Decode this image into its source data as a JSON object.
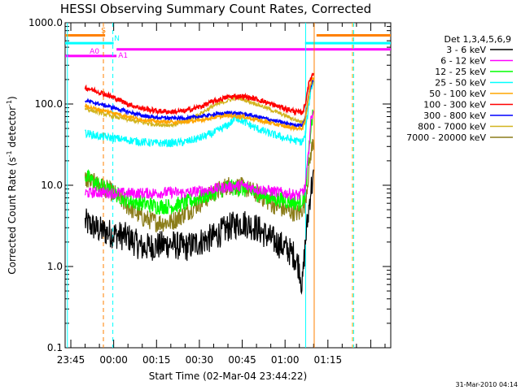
{
  "chart_data": {
    "type": "line",
    "title": "HESSI Observing Summary Count Rates, Corrected",
    "xlabel": "Start Time (02-Mar-04 23:44:22)",
    "ylabel_parts": {
      "before": "Corrected Count Rate (s",
      "sup1": "-1",
      "mid": " detector",
      "sup2": "-1",
      "after": ")"
    },
    "yscale": "log",
    "ylim": [
      0.1,
      1000.0
    ],
    "xlim_minutes": [
      -17,
      97
    ],
    "y_ticks": [
      {
        "value": 1000.0,
        "label": "1000.0"
      },
      {
        "value": 100.0,
        "label": "100.0"
      },
      {
        "value": 10.0,
        "label": "10.0"
      },
      {
        "value": 1.0,
        "label": "1.0"
      },
      {
        "value": 0.1,
        "label": "0.1"
      }
    ],
    "x_ticks": [
      {
        "value": -15,
        "label": "23:45"
      },
      {
        "value": 0,
        "label": "00:00"
      },
      {
        "value": 15,
        "label": "00:15"
      },
      {
        "value": 30,
        "label": "00:30"
      },
      {
        "value": 45,
        "label": "00:45"
      },
      {
        "value": 60,
        "label": "01:00"
      },
      {
        "value": 75,
        "label": "01:15"
      }
    ],
    "legend_header": "Det 1,3,4,5,6,9",
    "legend_position": "right",
    "series": [
      {
        "name": "3 - 6 keV",
        "color": "#000000",
        "noise": 0.18,
        "points": [
          [
            -10,
            3.5
          ],
          [
            -5,
            2.8
          ],
          [
            0,
            2.5
          ],
          [
            5,
            2.3
          ],
          [
            10,
            1.7
          ],
          [
            15,
            1.8
          ],
          [
            20,
            1.9
          ],
          [
            25,
            1.7
          ],
          [
            30,
            2.0
          ],
          [
            35,
            2.3
          ],
          [
            40,
            3.0
          ],
          [
            45,
            3.5
          ],
          [
            50,
            3.0
          ],
          [
            55,
            2.2
          ],
          [
            60,
            1.7
          ],
          [
            63,
            1.4
          ],
          [
            65,
            1.0
          ],
          [
            66,
            0.55
          ],
          [
            67,
            1.8
          ],
          [
            68,
            4.0
          ],
          [
            69,
            9.0
          ],
          [
            70,
            12.0
          ]
        ]
      },
      {
        "name": "6 - 12 keV",
        "color": "#ff00ff",
        "noise": 0.07,
        "points": [
          [
            -10,
            8.0
          ],
          [
            -5,
            8.2
          ],
          [
            0,
            8.0
          ],
          [
            5,
            8.0
          ],
          [
            10,
            8.0
          ],
          [
            15,
            8.0
          ],
          [
            20,
            8.2
          ],
          [
            25,
            8.0
          ],
          [
            30,
            8.5
          ],
          [
            35,
            9.0
          ],
          [
            40,
            9.5
          ],
          [
            45,
            10.0
          ],
          [
            50,
            9.0
          ],
          [
            55,
            8.5
          ],
          [
            60,
            8.0
          ],
          [
            65,
            7.5
          ],
          [
            67,
            9.0
          ],
          [
            68,
            20.0
          ],
          [
            69,
            60.0
          ],
          [
            70,
            90.0
          ]
        ]
      },
      {
        "name": "12 - 25 keV",
        "color": "#00ff00",
        "noise": 0.1,
        "points": [
          [
            -10,
            13.0
          ],
          [
            -5,
            10.0
          ],
          [
            0,
            8.0
          ],
          [
            5,
            6.5
          ],
          [
            10,
            6.0
          ],
          [
            15,
            5.5
          ],
          [
            20,
            5.5
          ],
          [
            25,
            6.0
          ],
          [
            30,
            7.0
          ],
          [
            35,
            8.0
          ],
          [
            40,
            9.5
          ],
          [
            45,
            9.0
          ],
          [
            50,
            8.0
          ],
          [
            55,
            7.0
          ],
          [
            60,
            6.5
          ],
          [
            65,
            6.0
          ],
          [
            67,
            7.5
          ],
          [
            68,
            18.0
          ],
          [
            69,
            50.0
          ],
          [
            70,
            80.0
          ]
        ]
      },
      {
        "name": "25 - 50 keV",
        "color": "#00ffff",
        "noise": 0.05,
        "points": [
          [
            -10,
            44.0
          ],
          [
            -5,
            40.0
          ],
          [
            0,
            38.0
          ],
          [
            5,
            36.0
          ],
          [
            10,
            34.0
          ],
          [
            15,
            33.0
          ],
          [
            20,
            33.0
          ],
          [
            25,
            34.0
          ],
          [
            30,
            38.0
          ],
          [
            35,
            44.0
          ],
          [
            40,
            55.0
          ],
          [
            43,
            68.0
          ],
          [
            45,
            62.0
          ],
          [
            50,
            50.0
          ],
          [
            55,
            43.0
          ],
          [
            60,
            38.0
          ],
          [
            64,
            35.0
          ],
          [
            66,
            34.0
          ],
          [
            67,
            40.0
          ],
          [
            68,
            80.0
          ],
          [
            69,
            150.0
          ],
          [
            70,
            190.0
          ]
        ]
      },
      {
        "name": "50 - 100 keV",
        "color": "#ffa500",
        "noise": 0.02,
        "points": [
          [
            -10,
            95.0
          ],
          [
            -5,
            85.0
          ],
          [
            0,
            78.0
          ],
          [
            5,
            70.0
          ],
          [
            10,
            64.0
          ],
          [
            15,
            61.0
          ],
          [
            20,
            60.0
          ],
          [
            25,
            60.0
          ],
          [
            30,
            63.0
          ],
          [
            35,
            68.0
          ],
          [
            40,
            72.0
          ],
          [
            45,
            70.0
          ],
          [
            50,
            64.0
          ],
          [
            55,
            58.0
          ],
          [
            60,
            53.0
          ],
          [
            64,
            50.0
          ],
          [
            66,
            50.0
          ],
          [
            67,
            60.0
          ],
          [
            68,
            110.0
          ],
          [
            69,
            180.0
          ],
          [
            70,
            220.0
          ]
        ]
      },
      {
        "name": "100 - 300 keV",
        "color": "#ff0000",
        "noise": 0.03,
        "points": [
          [
            -10,
            160.0
          ],
          [
            -5,
            140.0
          ],
          [
            0,
            120.0
          ],
          [
            5,
            100.0
          ],
          [
            10,
            88.0
          ],
          [
            15,
            82.0
          ],
          [
            20,
            80.0
          ],
          [
            25,
            82.0
          ],
          [
            30,
            92.0
          ],
          [
            35,
            108.0
          ],
          [
            40,
            122.0
          ],
          [
            45,
            125.0
          ],
          [
            50,
            115.0
          ],
          [
            55,
            100.0
          ],
          [
            60,
            88.0
          ],
          [
            64,
            80.0
          ],
          [
            66,
            78.0
          ],
          [
            67,
            95.0
          ],
          [
            68,
            160.0
          ],
          [
            69,
            210.0
          ],
          [
            70,
            240.0
          ]
        ]
      },
      {
        "name": "300 - 800 keV",
        "color": "#0000ff",
        "noise": 0.02,
        "points": [
          [
            -10,
            110.0
          ],
          [
            -5,
            100.0
          ],
          [
            0,
            90.0
          ],
          [
            5,
            80.0
          ],
          [
            10,
            72.0
          ],
          [
            15,
            68.0
          ],
          [
            20,
            67.0
          ],
          [
            25,
            67.0
          ],
          [
            30,
            70.0
          ],
          [
            35,
            74.0
          ],
          [
            40,
            78.0
          ],
          [
            45,
            76.0
          ],
          [
            50,
            70.0
          ],
          [
            55,
            64.0
          ],
          [
            60,
            58.0
          ],
          [
            64,
            55.0
          ],
          [
            66,
            55.0
          ],
          [
            67,
            65.0
          ],
          [
            68,
            110.0
          ],
          [
            69,
            170.0
          ],
          [
            70,
            200.0
          ]
        ]
      },
      {
        "name": "800 - 7000 keV",
        "color": "#d2b41e",
        "noise": 0.025,
        "points": [
          [
            -10,
            88.0
          ],
          [
            -5,
            78.0
          ],
          [
            0,
            70.0
          ],
          [
            5,
            64.0
          ],
          [
            10,
            59.0
          ],
          [
            15,
            56.0
          ],
          [
            20,
            55.0
          ],
          [
            25,
            60.0
          ],
          [
            30,
            75.0
          ],
          [
            35,
            95.0
          ],
          [
            40,
            110.0
          ],
          [
            43,
            120.0
          ],
          [
            45,
            115.0
          ],
          [
            50,
            100.0
          ],
          [
            55,
            85.0
          ],
          [
            60,
            72.0
          ],
          [
            64,
            63.0
          ],
          [
            66,
            60.0
          ],
          [
            67,
            70.0
          ],
          [
            68,
            120.0
          ],
          [
            69,
            170.0
          ],
          [
            70,
            200.0
          ]
        ]
      },
      {
        "name": "7000 - 20000 keV",
        "color": "#8b7d1a",
        "noise": 0.12,
        "points": [
          [
            -10,
            12.0
          ],
          [
            -5,
            10.0
          ],
          [
            0,
            8.0
          ],
          [
            5,
            5.5
          ],
          [
            10,
            4.0
          ],
          [
            15,
            3.5
          ],
          [
            20,
            3.5
          ],
          [
            25,
            4.5
          ],
          [
            30,
            6.0
          ],
          [
            35,
            8.0
          ],
          [
            40,
            10.0
          ],
          [
            45,
            9.5
          ],
          [
            50,
            8.0
          ],
          [
            55,
            6.0
          ],
          [
            60,
            5.0
          ],
          [
            65,
            4.5
          ],
          [
            67,
            6.0
          ],
          [
            68,
            12.0
          ],
          [
            69,
            25.0
          ],
          [
            70,
            35.0
          ]
        ]
      }
    ],
    "flags": [
      {
        "label": "S",
        "color": "#ff8000",
        "value": 700.0,
        "segments": [
          [
            -17,
            -3
          ],
          [
            71,
            97
          ]
        ]
      },
      {
        "label": "N",
        "color": "#00ffff",
        "value": 560.0,
        "segments": [
          [
            -17,
            0
          ],
          [
            67,
            97
          ]
        ]
      },
      {
        "label": "A0",
        "color": "#ff00ff",
        "value": 390.0,
        "segments": [
          [
            -17,
            1
          ]
        ]
      },
      {
        "label": "A1",
        "color": "#ff00ff",
        "value": 470.0,
        "segments": [
          [
            1,
            97
          ]
        ]
      }
    ],
    "vertical_markers": [
      {
        "value": -16.2,
        "color": "#00ffff",
        "style": "solid"
      },
      {
        "value": -3.6,
        "color": "#ff8000",
        "style": "dashed"
      },
      {
        "value": -0.3,
        "color": "#00ffff",
        "style": "dashed"
      },
      {
        "value": 67.2,
        "color": "#00ffff",
        "style": "solid"
      },
      {
        "value": 70.2,
        "color": "#ff8000",
        "style": "solid"
      },
      {
        "value": 83.6,
        "color": "#ffa500",
        "style": "dashed"
      },
      {
        "value": 84.0,
        "color": "#00ffff",
        "style": "dashed"
      }
    ]
  },
  "footer": {
    "timestamp": "31-Mar-2010 04:14"
  }
}
